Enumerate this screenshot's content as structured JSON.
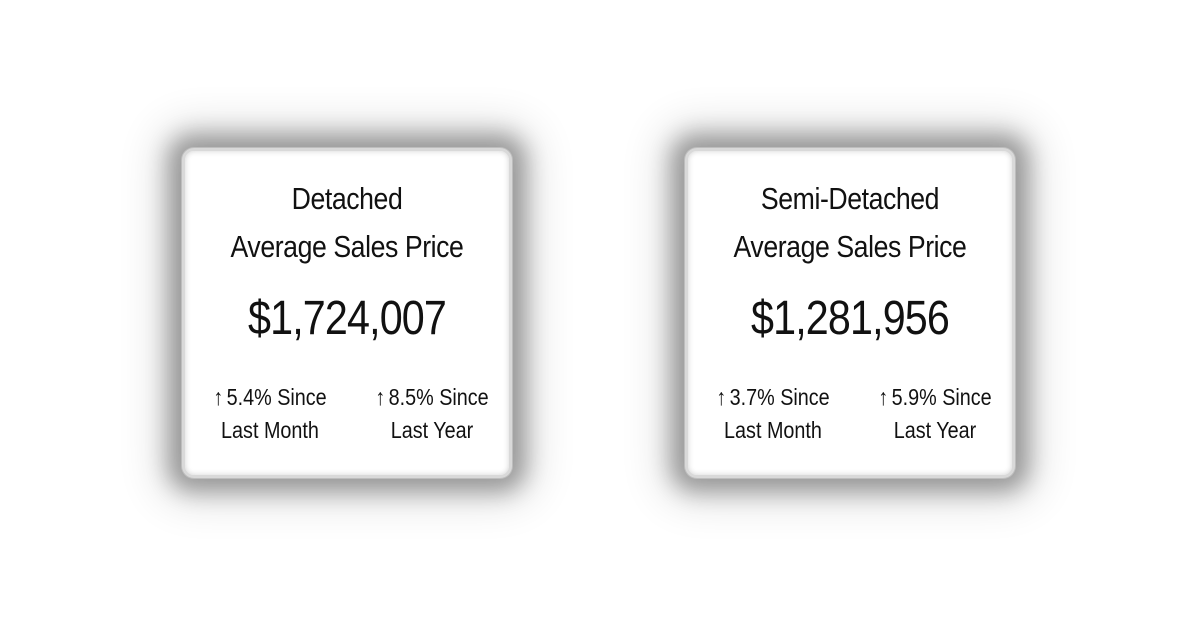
{
  "cards": [
    {
      "title_line1": "Detached",
      "title_line2": "Average Sales Price",
      "price": "$1,724,007",
      "month_change": {
        "arrow": "↑",
        "line1": "5.4% Since",
        "line2": "Last Month"
      },
      "year_change": {
        "arrow": "↑",
        "line1": "8.5% Since",
        "line2": "Last Year"
      }
    },
    {
      "title_line1": "Semi-Detached",
      "title_line2": "Average Sales Price",
      "price": "$1,281,956",
      "month_change": {
        "arrow": "↑",
        "line1": "3.7% Since",
        "line2": "Last Month"
      },
      "year_change": {
        "arrow": "↑",
        "line1": "5.9% Since",
        "line2": "Last Year"
      }
    }
  ]
}
